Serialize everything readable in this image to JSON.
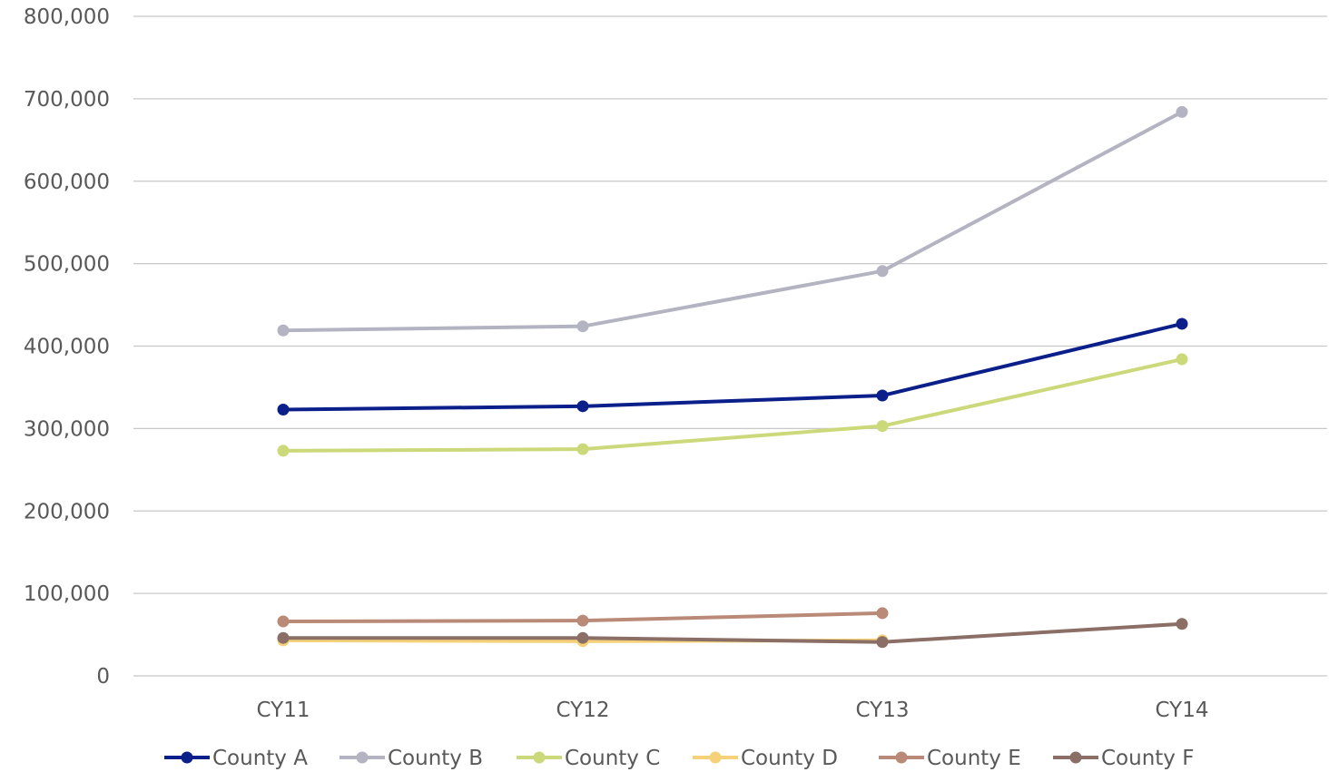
{
  "chart_data": {
    "type": "line",
    "title": "",
    "xlabel": "",
    "ylabel": "",
    "categories": [
      "CY11",
      "CY12",
      "CY13",
      "CY14"
    ],
    "ylim": [
      0,
      800000
    ],
    "yticks": [
      0,
      100000,
      200000,
      300000,
      400000,
      500000,
      600000,
      700000,
      800000
    ],
    "ytick_labels": [
      "0",
      "100,000",
      "200,000",
      "300,000",
      "400,000",
      "500,000",
      "600,000",
      "700,000",
      "800,000"
    ],
    "grid": true,
    "legend_position": "bottom",
    "series": [
      {
        "name": "County A",
        "color": "#0b1f8a",
        "values": [
          323000,
          327000,
          340000,
          427000
        ]
      },
      {
        "name": "County B",
        "color": "#b3b3c2",
        "values": [
          419000,
          424000,
          491000,
          684000
        ]
      },
      {
        "name": "County C",
        "color": "#ccd97a",
        "values": [
          273000,
          275000,
          303000,
          384000
        ]
      },
      {
        "name": "County D",
        "color": "#f5d27a",
        "values": [
          43000,
          42000,
          43000,
          null
        ]
      },
      {
        "name": "County E",
        "color": "#b98a78",
        "values": [
          66000,
          67000,
          76000,
          null
        ]
      },
      {
        "name": "County F",
        "color": "#8b6f66",
        "values": [
          46000,
          46000,
          41000,
          63000
        ]
      }
    ]
  }
}
